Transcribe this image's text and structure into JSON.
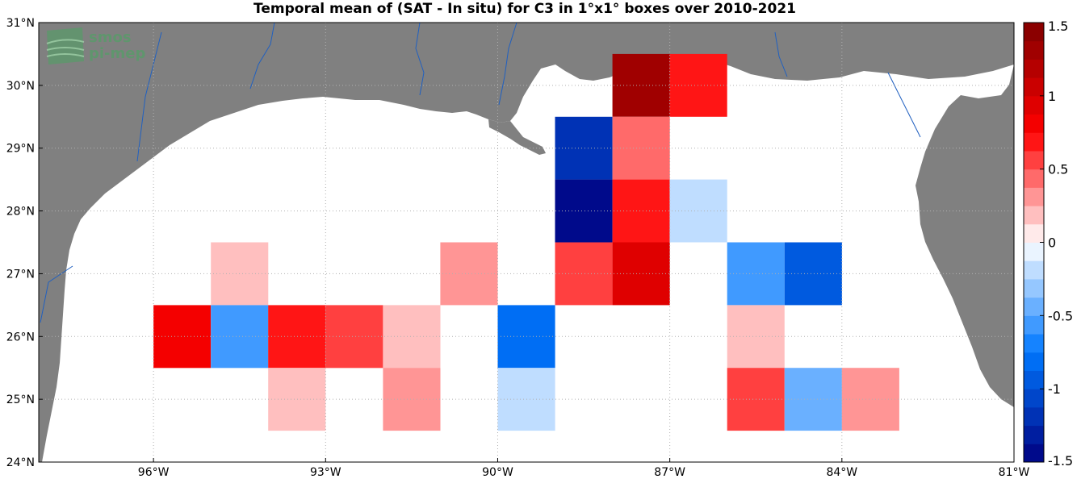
{
  "title": "Temporal mean of (SAT - In situ) for C3 in 1°x1° boxes over 2010-2021",
  "logo": {
    "line1": "smos",
    "line2": "pi-mep"
  },
  "axes": {
    "x_ticks": [
      {
        "value": -96,
        "label": "96°W"
      },
      {
        "value": -93,
        "label": "93°W"
      },
      {
        "value": -90,
        "label": "90°W"
      },
      {
        "value": -87,
        "label": "87°W"
      },
      {
        "value": -84,
        "label": "84°W"
      },
      {
        "value": -81,
        "label": "81°W"
      }
    ],
    "y_ticks": [
      {
        "value": 24,
        "label": "24°N"
      },
      {
        "value": 25,
        "label": "25°N"
      },
      {
        "value": 26,
        "label": "26°N"
      },
      {
        "value": 27,
        "label": "27°N"
      },
      {
        "value": 28,
        "label": "28°N"
      },
      {
        "value": 29,
        "label": "29°N"
      },
      {
        "value": 30,
        "label": "30°N"
      },
      {
        "value": 31,
        "label": "31°N"
      }
    ]
  },
  "colorbar": {
    "range": [
      -1.5,
      1.5
    ],
    "ticks": [
      {
        "value": 1.5,
        "label": "1.5"
      },
      {
        "value": 1,
        "label": "1"
      },
      {
        "value": 0.5,
        "label": "0.5"
      },
      {
        "value": 0,
        "label": "0"
      },
      {
        "value": -0.5,
        "label": "-0.5"
      },
      {
        "value": -1,
        "label": "-1"
      },
      {
        "value": -1.5,
        "label": "-1.5"
      }
    ]
  },
  "colors": {
    "land": "#808080",
    "ocean": "#ffffff",
    "river": "#2060c0",
    "grid": "#b0b0b0",
    "logo": "#5a9a6a"
  },
  "chart_data": {
    "type": "heatmap",
    "title": "Temporal mean of (SAT - In situ) for C3 in 1°x1° boxes over 2010-2021",
    "xlim": [
      -98,
      -81
    ],
    "ylim": [
      24,
      31
    ],
    "grid": true,
    "colorbar_range": [
      -1.5,
      1.5
    ],
    "cells": [
      {
        "lon": -87.5,
        "lat": 30.0,
        "value": 1.3
      },
      {
        "lon": -86.5,
        "lat": 30.0,
        "value": 0.65
      },
      {
        "lon": -88.5,
        "lat": 29.0,
        "value": -1.2
      },
      {
        "lon": -87.5,
        "lat": 29.0,
        "value": 0.45
      },
      {
        "lon": -88.5,
        "lat": 28.0,
        "value": -1.45
      },
      {
        "lon": -87.5,
        "lat": 28.0,
        "value": 0.65
      },
      {
        "lon": -86.5,
        "lat": 28.0,
        "value": -0.15
      },
      {
        "lon": -94.5,
        "lat": 27.0,
        "value": 0.15
      },
      {
        "lon": -90.5,
        "lat": 27.0,
        "value": 0.3
      },
      {
        "lon": -88.5,
        "lat": 27.0,
        "value": 0.5
      },
      {
        "lon": -87.5,
        "lat": 27.0,
        "value": 0.95
      },
      {
        "lon": -85.5,
        "lat": 27.0,
        "value": -0.55
      },
      {
        "lon": -84.5,
        "lat": 27.0,
        "value": -0.9
      },
      {
        "lon": -95.5,
        "lat": 26.0,
        "value": 0.75
      },
      {
        "lon": -94.5,
        "lat": 26.0,
        "value": -0.55
      },
      {
        "lon": -93.5,
        "lat": 26.0,
        "value": 0.65
      },
      {
        "lon": -92.5,
        "lat": 26.0,
        "value": 0.5
      },
      {
        "lon": -91.5,
        "lat": 26.0,
        "value": 0.15
      },
      {
        "lon": -89.5,
        "lat": 26.0,
        "value": -0.85
      },
      {
        "lon": -85.5,
        "lat": 26.0,
        "value": 0.15
      },
      {
        "lon": -93.5,
        "lat": 25.0,
        "value": 0.15
      },
      {
        "lon": -91.5,
        "lat": 25.0,
        "value": 0.3
      },
      {
        "lon": -89.5,
        "lat": 25.0,
        "value": -0.15
      },
      {
        "lon": -85.5,
        "lat": 25.0,
        "value": 0.5
      },
      {
        "lon": -84.5,
        "lat": 25.0,
        "value": -0.4
      },
      {
        "lon": -83.5,
        "lat": 25.0,
        "value": 0.3
      }
    ]
  }
}
